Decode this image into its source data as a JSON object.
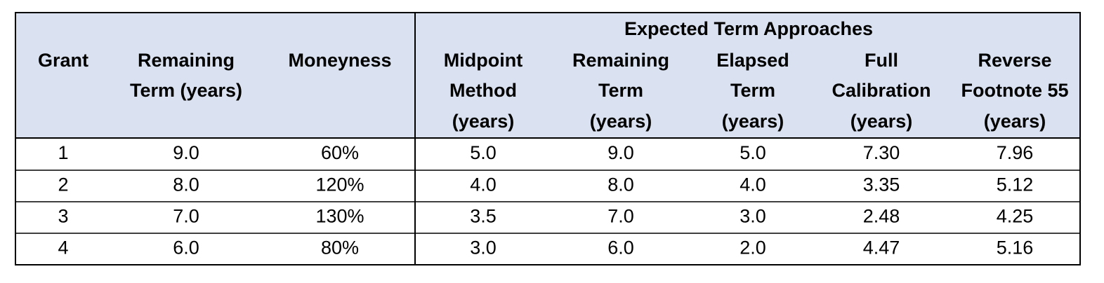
{
  "table": {
    "group_header": "Expected Term Approaches",
    "columns": [
      [
        "Grant"
      ],
      [
        "Remaining",
        "Term (years)"
      ],
      [
        "Moneyness"
      ],
      [
        "Midpoint",
        "Method",
        "(years)"
      ],
      [
        "Remaining",
        "Term",
        "(years)"
      ],
      [
        "Elapsed",
        "Term",
        "(years)"
      ],
      [
        "Full",
        "Calibration",
        "(years)"
      ],
      [
        "Reverse",
        "Footnote 55",
        "(years)"
      ]
    ],
    "rows": [
      [
        "1",
        "9.0",
        "60%",
        "5.0",
        "9.0",
        "5.0",
        "7.30",
        "7.96"
      ],
      [
        "2",
        "8.0",
        "120%",
        "4.0",
        "8.0",
        "4.0",
        "3.35",
        "5.12"
      ],
      [
        "3",
        "7.0",
        "130%",
        "3.5",
        "7.0",
        "3.0",
        "2.48",
        "4.25"
      ],
      [
        "4",
        "6.0",
        "80%",
        "3.0",
        "6.0",
        "2.0",
        "4.47",
        "5.16"
      ]
    ]
  }
}
